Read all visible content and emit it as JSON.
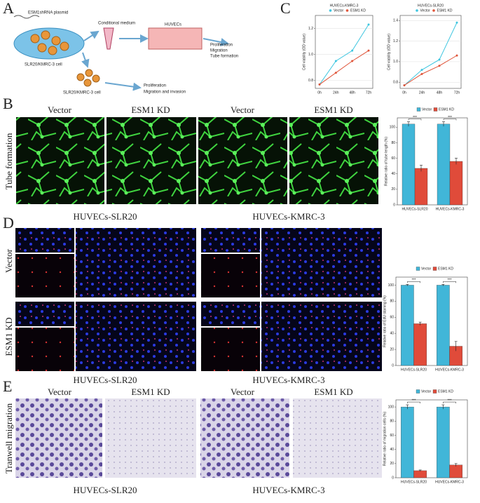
{
  "panels": {
    "A": {
      "letter": "A",
      "plasmid": "ESM1shRNA plasmid",
      "medium": "Conditional medium",
      "huvecs": "HUVECs",
      "outcomes": [
        "Proliferation",
        "Migration",
        "Tube formation"
      ],
      "cell_top": "SLR20/KMRC-3 cell",
      "cell_bottom": "SLR20/KMRC-3 cell",
      "outcomes_cell": [
        "Proliferation",
        "Migration and invasion"
      ]
    },
    "B": {
      "letter": "B",
      "columns": [
        "Vector",
        "ESM1 KD",
        "Vector",
        "ESM1 KD"
      ],
      "row_label": "Tube formation",
      "groups": [
        "HUVECs-SLR20",
        "HUVECs-KMRC-3"
      ]
    },
    "C": {
      "letter": "C"
    },
    "D": {
      "letter": "D",
      "rows": [
        "Vector",
        "ESM1 KD"
      ],
      "groups": [
        "HUVECs-SLR20",
        "HUVECs-KMRC-3"
      ]
    },
    "E": {
      "letter": "E",
      "columns": [
        "Vector",
        "ESM1 KD",
        "Vector",
        "ESM1 KD"
      ],
      "row_label": "Tranwell migration",
      "groups": [
        "HUVECs-SLR20",
        "HUVECs-KMRC-3"
      ]
    }
  },
  "chart_data": [
    {
      "type": "line",
      "title": "HUVECs-KMRC-3",
      "y_label": "Cell viability (OD value)",
      "categories": [
        "0h",
        "24h",
        "48h",
        "72h"
      ],
      "series": [
        {
          "name": "Vector",
          "color": "#3ec6e0",
          "values": [
            0.77,
            0.95,
            1.03,
            1.23
          ]
        },
        {
          "name": "ESM1 KD",
          "color": "#e0553a",
          "values": [
            0.77,
            0.86,
            0.95,
            1.03
          ]
        }
      ],
      "ylim": [
        0.74,
        1.3
      ],
      "yticks": [
        0.8,
        {
          "value": 1.0,
          "label": "1.0"
        },
        1.2
      ],
      "grid": true
    },
    {
      "type": "line",
      "title": "HUVECs-SLR20",
      "y_label": "Cell viability (OD value)",
      "categories": [
        "0h",
        "24h",
        "48h",
        "72h"
      ],
      "series": [
        {
          "name": "Vector",
          "color": "#3ec6e0",
          "values": [
            0.77,
            0.92,
            1.02,
            1.38
          ]
        },
        {
          "name": "ESM1 KD",
          "color": "#e0553a",
          "values": [
            0.77,
            0.88,
            0.96,
            1.06
          ]
        }
      ],
      "ylim": [
        0.74,
        1.45
      ],
      "yticks": [
        0.8,
        {
          "value": 1.0,
          "label": "1.0"
        },
        1.2,
        1.4
      ],
      "grid": true
    },
    {
      "type": "bar",
      "y_label": "Relative ratio of tube length (%)",
      "categories": [
        "HUVECs-SLR20",
        "HUVECs-KMRC-3"
      ],
      "series": [
        {
          "name": "Vector",
          "color": "#41b6d8",
          "values": [
            104,
            104
          ],
          "errors": [
            3,
            3
          ]
        },
        {
          "name": "ESM1 KD",
          "color": "#e04b3a",
          "values": [
            47,
            56
          ],
          "errors": [
            4,
            4
          ]
        }
      ],
      "annotations": [
        "***",
        "***"
      ],
      "ylim": [
        0,
        112
      ],
      "yticks": [
        0,
        20,
        40,
        60,
        80,
        100
      ]
    },
    {
      "type": "bar",
      "y_label": "Relative ratio of EdU staining (%)",
      "categories": [
        "HUVECs-SLR20",
        "HUVECs-KMRC-3"
      ],
      "series": [
        {
          "name": "Vector",
          "color": "#41b6d8",
          "values": [
            100,
            100
          ],
          "errors": [
            1,
            1
          ]
        },
        {
          "name": "ESM1 KD",
          "color": "#e04b3a",
          "values": [
            52,
            24
          ],
          "errors": [
            2,
            6
          ]
        }
      ],
      "annotations": [
        "***",
        "***"
      ],
      "ylim": [
        0,
        110
      ],
      "yticks": [
        0,
        20,
        40,
        60,
        80,
        100
      ]
    },
    {
      "type": "bar",
      "y_label": "Relative ratio of migration cells (%)",
      "categories": [
        "HUVECs-SLR20",
        "HUVECs-KMRC-3"
      ],
      "series": [
        {
          "name": "Vector",
          "color": "#41b6d8",
          "values": [
            100,
            100
          ],
          "errors": [
            3,
            3
          ]
        },
        {
          "name": "ESM1 KD",
          "color": "#e04b3a",
          "values": [
            10,
            18
          ],
          "errors": [
            1,
            2
          ]
        }
      ],
      "annotations": [
        "***",
        "***"
      ],
      "ylim": [
        0,
        110
      ],
      "yticks": [
        0,
        20,
        40,
        60,
        80,
        100
      ]
    }
  ]
}
